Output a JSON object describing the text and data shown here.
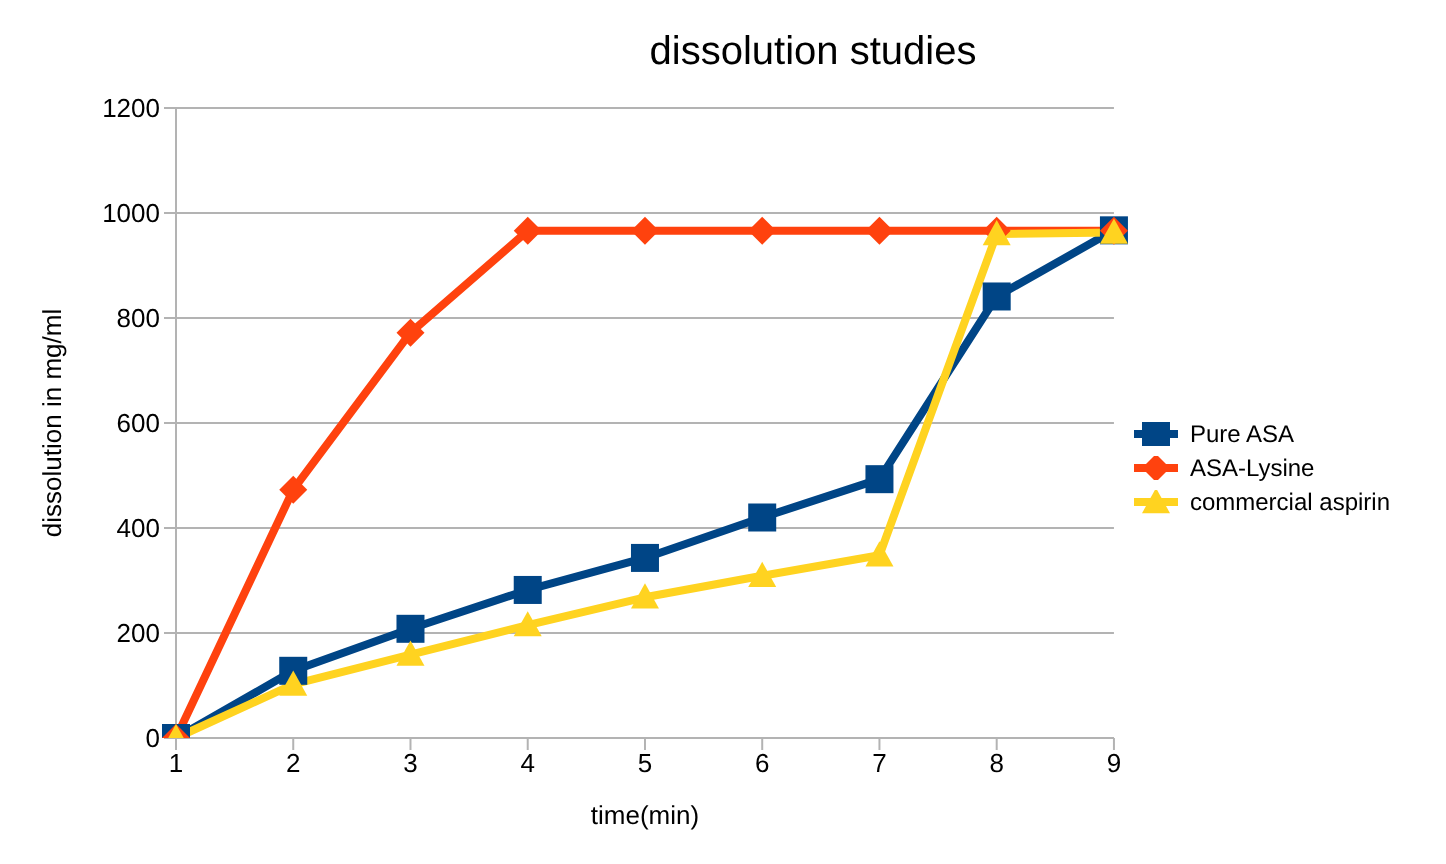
{
  "chart_data": {
    "type": "line",
    "title": "dissolution studies",
    "xlabel": "time(min)",
    "ylabel": "dissolution in mg/ml",
    "categories": [
      "1",
      "2",
      "3",
      "4",
      "5",
      "6",
      "7",
      "8",
      "9"
    ],
    "series": [
      {
        "name": "Pure ASA",
        "color": "#004586",
        "marker": "square",
        "values": [
          0,
          128,
          208,
          282,
          343,
          420,
          493,
          841,
          967
        ]
      },
      {
        "name": "ASA-Lysine",
        "color": "#ff420e",
        "marker": "diamond",
        "values": [
          0,
          473,
          772,
          966,
          966,
          966,
          966,
          966,
          966
        ]
      },
      {
        "name": "commercial aspirin",
        "color": "#ffd320",
        "marker": "triangle",
        "values": [
          0,
          102,
          159,
          215,
          268,
          309,
          348,
          960,
          963
        ]
      }
    ],
    "ylim": [
      0,
      1200
    ],
    "yticks": [
      0,
      200,
      400,
      600,
      800,
      1000,
      1200
    ],
    "grid": "y",
    "legend": "right",
    "line_style": "solid"
  }
}
